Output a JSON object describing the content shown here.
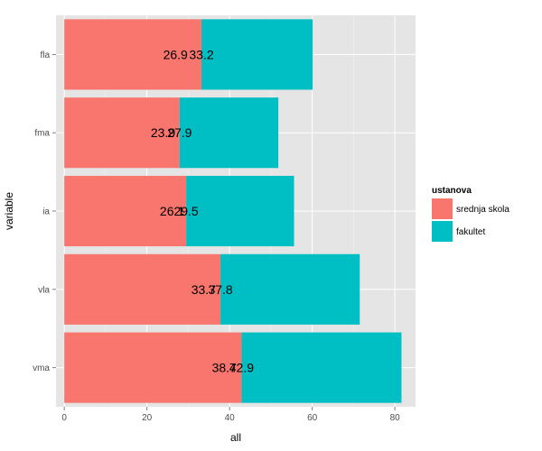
{
  "chart_data": {
    "type": "bar",
    "orientation": "horizontal",
    "stacked": true,
    "categories": [
      "fla",
      "fma",
      "ia",
      "vla",
      "vma"
    ],
    "series": [
      {
        "name": "srednja skola",
        "color": "#F8766D",
        "values": [
          33.2,
          27.9,
          29.5,
          37.8,
          42.9
        ]
      },
      {
        "name": "fakultet",
        "color": "#00BFC4",
        "values": [
          26.9,
          23.9,
          26.1,
          33.7,
          38.7
        ]
      }
    ],
    "xlabel": "all",
    "ylabel": "variable",
    "xlim": [
      -2,
      85
    ],
    "xticks": [
      "0",
      "20",
      "40",
      "60",
      "80"
    ],
    "grid": true,
    "legend": {
      "title": "ustanova",
      "position": "right"
    }
  }
}
